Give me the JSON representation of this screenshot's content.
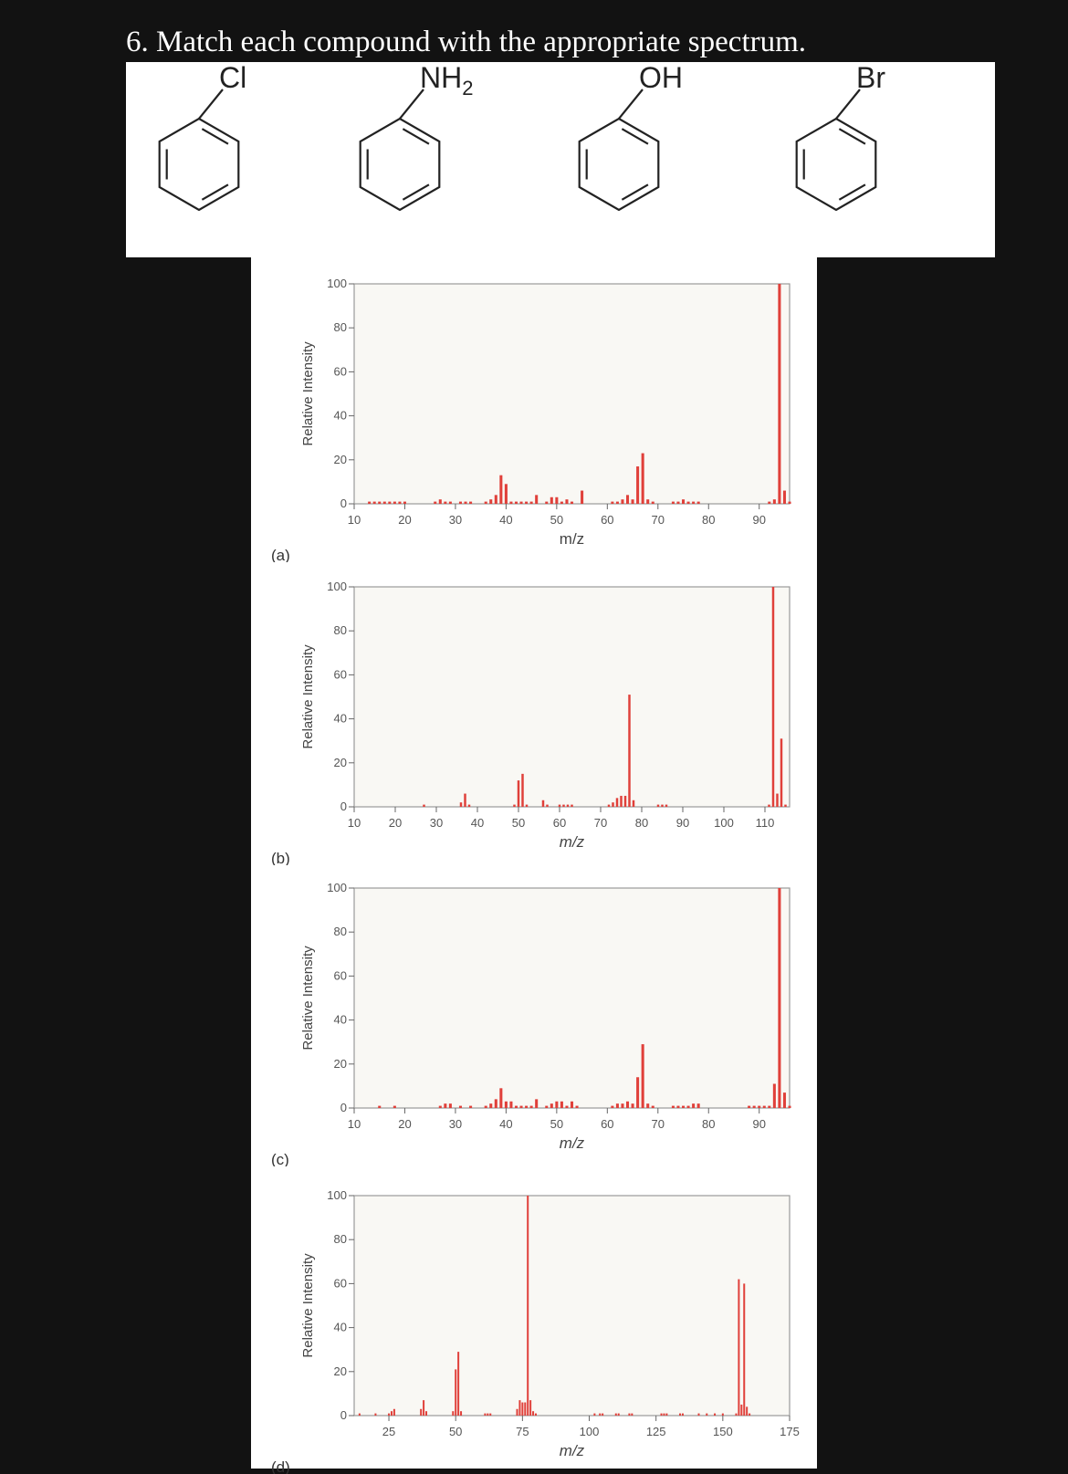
{
  "question": "6. Match each compound with the appropriate spectrum.",
  "compounds": [
    {
      "substituent": "Cl"
    },
    {
      "substituent": "NH",
      "subscript": "2"
    },
    {
      "substituent": "OH"
    },
    {
      "substituent": "Br"
    }
  ],
  "chart_data": [
    {
      "type": "bar",
      "panel_label": "(a)",
      "xlabel": "m/z",
      "ylabel": "Relative Intensity",
      "xlim": [
        10,
        96
      ],
      "ylim": [
        0,
        100
      ],
      "xticks": [
        10,
        20,
        30,
        40,
        50,
        60,
        70,
        80,
        90
      ],
      "yticks": [
        0,
        20,
        40,
        60,
        80,
        100
      ],
      "bar_color": "#e0403a",
      "peaks": [
        [
          13,
          1
        ],
        [
          14,
          1
        ],
        [
          15,
          1
        ],
        [
          16,
          1
        ],
        [
          17,
          1
        ],
        [
          18,
          1
        ],
        [
          19,
          1
        ],
        [
          20,
          1
        ],
        [
          26,
          1
        ],
        [
          27,
          2
        ],
        [
          28,
          1
        ],
        [
          29,
          1
        ],
        [
          31,
          1
        ],
        [
          32,
          1
        ],
        [
          33,
          1
        ],
        [
          36,
          1
        ],
        [
          37,
          2
        ],
        [
          38,
          4
        ],
        [
          39,
          13
        ],
        [
          40,
          9
        ],
        [
          41,
          1
        ],
        [
          42,
          1
        ],
        [
          43,
          1
        ],
        [
          44,
          1
        ],
        [
          45,
          1
        ],
        [
          46,
          4
        ],
        [
          48,
          1
        ],
        [
          49,
          3
        ],
        [
          50,
          3
        ],
        [
          51,
          1
        ],
        [
          52,
          2
        ],
        [
          53,
          1
        ],
        [
          55,
          6
        ],
        [
          61,
          1
        ],
        [
          62,
          1
        ],
        [
          63,
          2
        ],
        [
          64,
          4
        ],
        [
          65,
          2
        ],
        [
          66,
          17
        ],
        [
          67,
          23
        ],
        [
          68,
          2
        ],
        [
          69,
          1
        ],
        [
          73,
          1
        ],
        [
          74,
          1
        ],
        [
          75,
          2
        ],
        [
          76,
          1
        ],
        [
          77,
          1
        ],
        [
          78,
          1
        ],
        [
          92,
          1
        ],
        [
          93,
          2
        ],
        [
          94,
          100
        ],
        [
          95,
          6
        ],
        [
          96,
          1
        ]
      ]
    },
    {
      "type": "bar",
      "panel_label": "(b)",
      "xlabel": "m/z",
      "ylabel": "Relative Intensity",
      "xlim": [
        10,
        116
      ],
      "ylim": [
        0,
        100
      ],
      "xticks": [
        10,
        20,
        30,
        40,
        50,
        60,
        70,
        80,
        90,
        100,
        110
      ],
      "yticks": [
        0,
        20,
        40,
        60,
        80,
        100
      ],
      "bar_color": "#e0403a",
      "peaks": [
        [
          27,
          1
        ],
        [
          36,
          2
        ],
        [
          37,
          6
        ],
        [
          38,
          1
        ],
        [
          49,
          1
        ],
        [
          50,
          12
        ],
        [
          51,
          15
        ],
        [
          52,
          1
        ],
        [
          56,
          3
        ],
        [
          57,
          1
        ],
        [
          60,
          1
        ],
        [
          61,
          1
        ],
        [
          62,
          1
        ],
        [
          63,
          1
        ],
        [
          72,
          1
        ],
        [
          73,
          2
        ],
        [
          74,
          4
        ],
        [
          75,
          5
        ],
        [
          76,
          5
        ],
        [
          77,
          51
        ],
        [
          78,
          3
        ],
        [
          84,
          1
        ],
        [
          85,
          1
        ],
        [
          86,
          1
        ],
        [
          111,
          1
        ],
        [
          112,
          100
        ],
        [
          113,
          6
        ],
        [
          114,
          31
        ],
        [
          115,
          1
        ]
      ]
    },
    {
      "type": "bar",
      "panel_label": "(c)",
      "xlabel": "m/z",
      "ylabel": "Relative Intensity",
      "xlim": [
        10,
        96
      ],
      "ylim": [
        0,
        100
      ],
      "xticks": [
        10,
        20,
        30,
        40,
        50,
        60,
        70,
        80,
        90
      ],
      "yticks": [
        0,
        20,
        40,
        60,
        80,
        100
      ],
      "bar_color": "#e0403a",
      "peaks": [
        [
          15,
          1
        ],
        [
          18,
          1
        ],
        [
          27,
          1
        ],
        [
          28,
          2
        ],
        [
          29,
          2
        ],
        [
          31,
          1
        ],
        [
          33,
          1
        ],
        [
          36,
          1
        ],
        [
          37,
          2
        ],
        [
          38,
          4
        ],
        [
          39,
          9
        ],
        [
          40,
          3
        ],
        [
          41,
          3
        ],
        [
          42,
          1
        ],
        [
          43,
          1
        ],
        [
          44,
          1
        ],
        [
          45,
          1
        ],
        [
          46,
          4
        ],
        [
          48,
          1
        ],
        [
          49,
          2
        ],
        [
          50,
          3
        ],
        [
          51,
          3
        ],
        [
          52,
          1
        ],
        [
          53,
          3
        ],
        [
          54,
          1
        ],
        [
          61,
          1
        ],
        [
          62,
          2
        ],
        [
          63,
          2
        ],
        [
          64,
          3
        ],
        [
          65,
          2
        ],
        [
          66,
          14
        ],
        [
          67,
          29
        ],
        [
          68,
          2
        ],
        [
          69,
          1
        ],
        [
          73,
          1
        ],
        [
          74,
          1
        ],
        [
          75,
          1
        ],
        [
          76,
          1
        ],
        [
          77,
          2
        ],
        [
          78,
          2
        ],
        [
          88,
          1
        ],
        [
          89,
          1
        ],
        [
          90,
          1
        ],
        [
          91,
          1
        ],
        [
          92,
          1
        ],
        [
          93,
          11
        ],
        [
          94,
          100
        ],
        [
          95,
          7
        ],
        [
          96,
          1
        ]
      ]
    },
    {
      "type": "bar",
      "panel_label": "(d)",
      "xlabel": "m/z",
      "ylabel": "Relative Intensity",
      "xlim": [
        12,
        175
      ],
      "ylim": [
        0,
        100
      ],
      "xticks": [
        25,
        50,
        75,
        100,
        125,
        150,
        175
      ],
      "yticks": [
        0,
        20,
        40,
        60,
        80,
        100
      ],
      "bar_color": "#e0403a",
      "peaks": [
        [
          14,
          1
        ],
        [
          20,
          1
        ],
        [
          25,
          1
        ],
        [
          26,
          2
        ],
        [
          27,
          3
        ],
        [
          37,
          3
        ],
        [
          38,
          7
        ],
        [
          39,
          2
        ],
        [
          49,
          2
        ],
        [
          50,
          21
        ],
        [
          51,
          29
        ],
        [
          52,
          2
        ],
        [
          61,
          1
        ],
        [
          62,
          1
        ],
        [
          63,
          1
        ],
        [
          73,
          3
        ],
        [
          74,
          7
        ],
        [
          75,
          6
        ],
        [
          76,
          6
        ],
        [
          77,
          100
        ],
        [
          78,
          7
        ],
        [
          79,
          2
        ],
        [
          80,
          1
        ],
        [
          102,
          1
        ],
        [
          104,
          1
        ],
        [
          105,
          1
        ],
        [
          110,
          1
        ],
        [
          111,
          1
        ],
        [
          115,
          1
        ],
        [
          116,
          1
        ],
        [
          127,
          1
        ],
        [
          128,
          1
        ],
        [
          129,
          1
        ],
        [
          134,
          1
        ],
        [
          135,
          1
        ],
        [
          141,
          1
        ],
        [
          144,
          1
        ],
        [
          147,
          1
        ],
        [
          150,
          1
        ],
        [
          155,
          1
        ],
        [
          156,
          62
        ],
        [
          157,
          5
        ],
        [
          158,
          60
        ],
        [
          159,
          4
        ],
        [
          160,
          1
        ]
      ]
    }
  ]
}
